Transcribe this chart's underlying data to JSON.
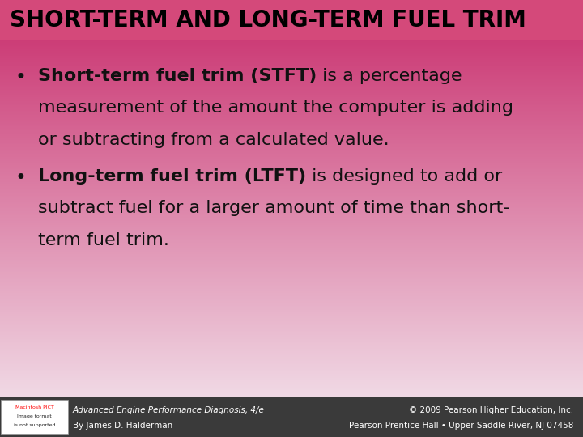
{
  "title": "SHORT-TERM AND LONG-TERM FUEL TRIM",
  "title_fontsize": 20,
  "title_color": "#000000",
  "title_bg_color": "#d4497a",
  "bg_top_color": "#cc3d77",
  "bg_bottom_color": "#f0d8e4",
  "bullet1_bold": "Short-term fuel trim (STFT)",
  "bullet1_rest_line1": " is a percentage",
  "bullet1_line2": "measurement of the amount the computer is adding",
  "bullet1_line3": "or subtracting from a calculated value.",
  "bullet2_bold": "Long-term fuel trim (LTFT)",
  "bullet2_rest_line1": " is designed to add or",
  "bullet2_line2": "subtract fuel for a larger amount of time than short-",
  "bullet2_line3": "term fuel trim.",
  "footer_bg_color": "#3a3a3a",
  "footer_left_line1": "Advanced Engine Performance Diagnosis, 4/e",
  "footer_left_line2": "By James D. Halderman",
  "footer_right_line1": "© 2009 Pearson Higher Education, Inc.",
  "footer_right_line2": "Pearson Prentice Hall • Upper Saddle River, NJ 07458",
  "footer_text_color": "#ffffff",
  "footer_fontsize": 7.5,
  "body_fontsize": 16,
  "figwidth": 7.2,
  "figheight": 5.4,
  "dpi": 100
}
